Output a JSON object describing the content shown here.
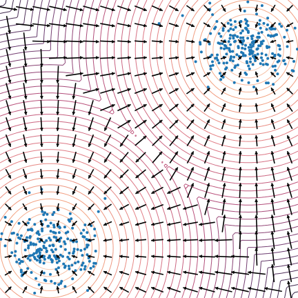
{
  "chart_data": {
    "type": "scatter",
    "title": "",
    "xlabel": "",
    "ylabel": "",
    "xlim": [
      -3,
      3
    ],
    "ylim": [
      -3,
      3
    ],
    "grid": false,
    "legend": "none",
    "background": "#ffffff",
    "clusters": [
      {
        "center": [
          2.0,
          2.0
        ],
        "spread": 0.45,
        "count": 240,
        "color": "#1f77b4"
      },
      {
        "center": [
          -2.0,
          -2.0
        ],
        "spread": 0.45,
        "count": 240,
        "color": "#1f77b4"
      }
    ],
    "contour": {
      "levels": 36,
      "colormap": [
        "#fde5d3",
        "#f3a07e",
        "#e07a85",
        "#b54d7a",
        "#6b3a6f",
        "#2d1e3e"
      ],
      "style": "unfilled-lines"
    },
    "quiver": {
      "grid": 18,
      "color": "#000000",
      "field": "gradient-towards-nearest-cluster"
    }
  }
}
